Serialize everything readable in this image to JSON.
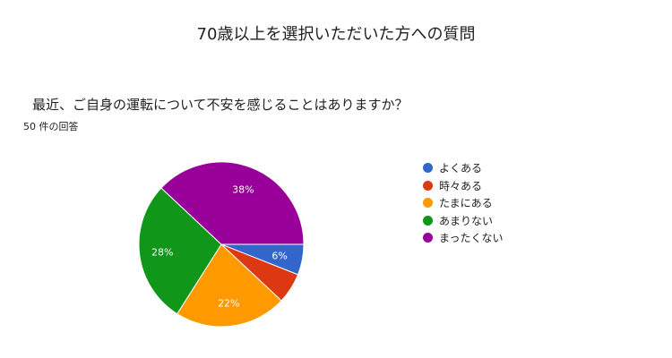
{
  "title": "70歳以上を選択いただいた方への質問",
  "question": "最近、ご自身の運転について不安を感じることはありますか？",
  "response_count": "50 件の回答",
  "chart_data": {
    "type": "pie",
    "title": "70歳以上を選択いただいた方への質問",
    "subtitle": "最近、ご自身の運転について不安を感じることはありますか？",
    "legend_position": "right",
    "slices": [
      {
        "label": "よくある",
        "value": 6,
        "display": "6%",
        "color": "#3366cc"
      },
      {
        "label": "時々ある",
        "value": 6,
        "display": "",
        "color": "#dc3912"
      },
      {
        "label": "たまにある",
        "value": 22,
        "display": "22%",
        "color": "#ff9900"
      },
      {
        "label": "あまりない",
        "value": 28,
        "display": "28%",
        "color": "#109618"
      },
      {
        "label": "まったくない",
        "value": 38,
        "display": "38%",
        "color": "#990099"
      }
    ]
  }
}
